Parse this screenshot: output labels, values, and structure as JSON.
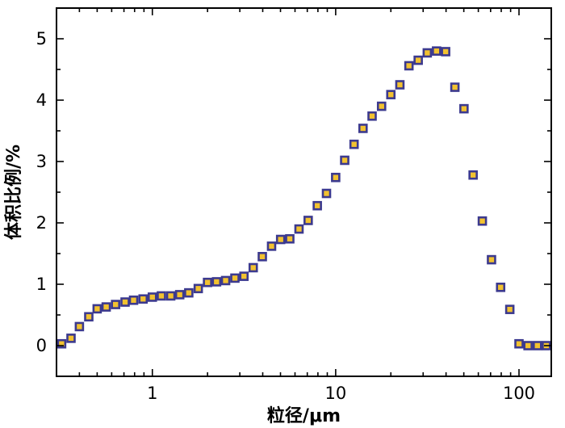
{
  "chart_data": {
    "type": "scatter",
    "title": "",
    "xlabel": "粒径/μm",
    "ylabel": "体积比例/%",
    "xscale": "log",
    "xlim": [
      0.3,
      150
    ],
    "ylim": [
      -0.5,
      5.5
    ],
    "grid": false,
    "legend": "none",
    "xticks": [
      {
        "value": 1,
        "label": "1"
      },
      {
        "value": 10,
        "label": "10"
      },
      {
        "value": 100,
        "label": "100"
      }
    ],
    "yticks": [
      {
        "value": 0,
        "label": "0"
      },
      {
        "value": 1,
        "label": "1"
      },
      {
        "value": 2,
        "label": "2"
      },
      {
        "value": 3,
        "label": "3"
      },
      {
        "value": 4,
        "label": "4"
      },
      {
        "value": 5,
        "label": "5"
      }
    ],
    "marker": {
      "shape": "square",
      "fill": "#f2c230",
      "edge": "#3c3a8f"
    },
    "x": [
      0.32,
      0.36,
      0.4,
      0.45,
      0.5,
      0.56,
      0.63,
      0.71,
      0.79,
      0.89,
      1.0,
      1.12,
      1.26,
      1.41,
      1.58,
      1.78,
      2.0,
      2.24,
      2.51,
      2.82,
      3.16,
      3.55,
      3.98,
      4.47,
      5.01,
      5.62,
      6.31,
      7.08,
      7.94,
      8.91,
      10.0,
      11.2,
      12.6,
      14.1,
      15.8,
      17.8,
      20.0,
      22.4,
      25.1,
      28.2,
      31.6,
      35.5,
      39.8,
      44.7,
      50.1,
      56.2,
      63.1,
      70.8,
      79.4,
      89.1,
      100,
      112,
      126,
      141
    ],
    "y": [
      0.03,
      0.12,
      0.31,
      0.47,
      0.6,
      0.63,
      0.67,
      0.71,
      0.74,
      0.76,
      0.79,
      0.81,
      0.81,
      0.83,
      0.86,
      0.93,
      1.03,
      1.04,
      1.06,
      1.1,
      1.13,
      1.27,
      1.45,
      1.62,
      1.73,
      1.74,
      1.9,
      2.04,
      2.28,
      2.48,
      2.74,
      3.02,
      3.28,
      3.54,
      3.74,
      3.9,
      4.09,
      4.25,
      4.56,
      4.65,
      4.77,
      4.8,
      4.79,
      4.21,
      3.86,
      2.78,
      2.03,
      1.4,
      0.95,
      0.59,
      0.03,
      0.0,
      0.0,
      0.0
    ]
  }
}
